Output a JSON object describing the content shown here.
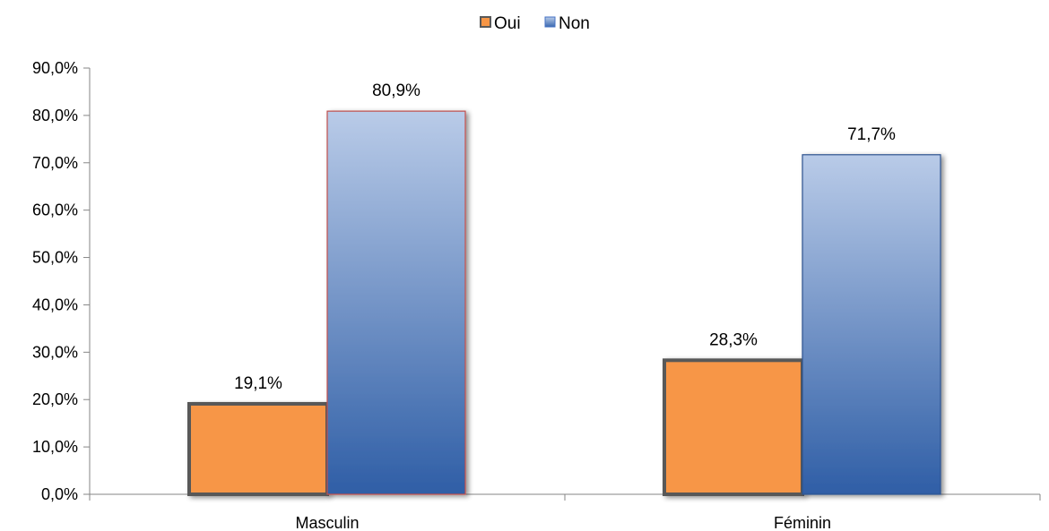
{
  "chart_data": {
    "type": "bar",
    "categories": [
      "Masculin",
      "Féminin"
    ],
    "series": [
      {
        "name": "Oui",
        "values": [
          19.1,
          28.3
        ],
        "labels": [
          "19,1%",
          "28,3%"
        ],
        "color": "#f79646",
        "border": "#595959"
      },
      {
        "name": "Non",
        "values": [
          80.9,
          71.7
        ],
        "labels": [
          "80,9%",
          "71,7%"
        ],
        "color_top": "#b4c7e7",
        "color_bottom": "#2e5fa8"
      }
    ],
    "ylim": [
      0,
      90
    ],
    "yticks": [
      0,
      10,
      20,
      30,
      40,
      50,
      60,
      70,
      80,
      90
    ],
    "ytick_labels": [
      "0,0%",
      "10,0%",
      "20,0%",
      "30,0%",
      "40,0%",
      "50,0%",
      "60,0%",
      "70,0%",
      "80,0%",
      "90,0%"
    ],
    "legend_position": "top",
    "grid": false
  }
}
